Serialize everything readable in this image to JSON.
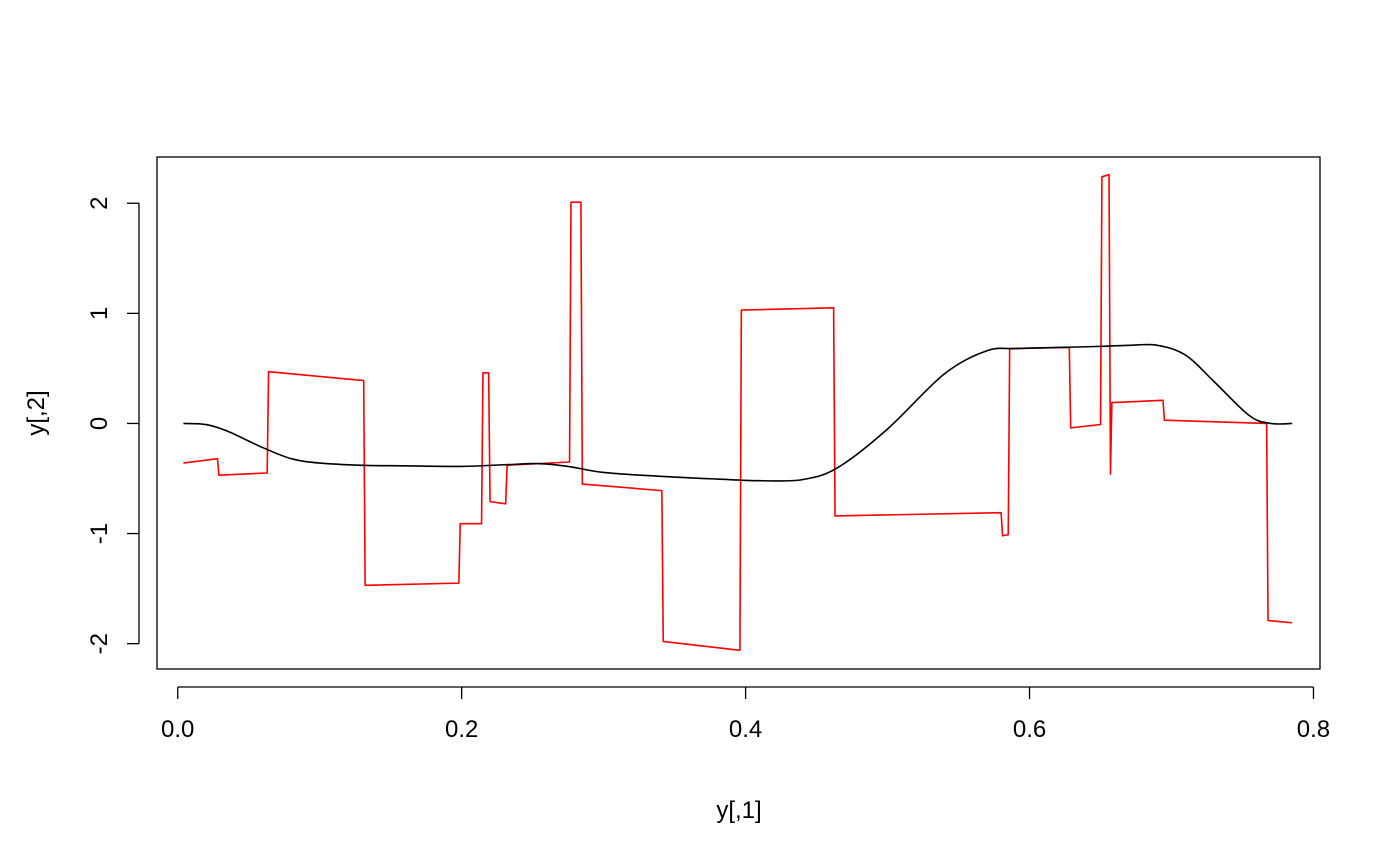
{
  "chart_data": {
    "type": "line",
    "title": "",
    "xlabel": "y[,1]",
    "ylabel": "y[,2]",
    "xlim": [
      -0.0146,
      0.8046
    ],
    "ylim": [
      -2.23,
      2.42
    ],
    "x_ticks": [
      0.0,
      0.2,
      0.4,
      0.6,
      0.8
    ],
    "x_tick_labels": [
      "0.0",
      "0.2",
      "0.4",
      "0.6",
      "0.8"
    ],
    "y_ticks": [
      -2,
      -1,
      0,
      1,
      2
    ],
    "y_tick_labels": [
      "-2",
      "-1",
      "0",
      "1",
      "2"
    ],
    "grid": false,
    "legend": "none",
    "series": [
      {
        "color": "#ff0000",
        "x": [
          0.004,
          0.028,
          0.029,
          0.063,
          0.064,
          0.131,
          0.132,
          0.198,
          0.199,
          0.214,
          0.215,
          0.219,
          0.22,
          0.231,
          0.232,
          0.276,
          0.277,
          0.284,
          0.285,
          0.341,
          0.342,
          0.396,
          0.397,
          0.462,
          0.463,
          0.58,
          0.581,
          0.585,
          0.586,
          0.628,
          0.629,
          0.65,
          0.651,
          0.656,
          0.657,
          0.658,
          0.659,
          0.694,
          0.695,
          0.767,
          0.768,
          0.785
        ],
        "y": [
          -0.36,
          -0.32,
          -0.47,
          -0.45,
          0.47,
          0.39,
          -1.47,
          -1.45,
          -0.91,
          -0.91,
          0.46,
          0.46,
          -0.71,
          -0.73,
          -0.38,
          -0.35,
          2.01,
          2.01,
          -0.55,
          -0.61,
          -1.98,
          -2.06,
          1.03,
          1.05,
          -0.84,
          -0.81,
          -1.02,
          -1.01,
          0.68,
          0.69,
          -0.04,
          -0.01,
          2.24,
          2.26,
          -0.46,
          0.19,
          0.19,
          0.21,
          0.03,
          0.0,
          -1.79,
          -1.81
        ]
      },
      {
        "color": "#000000",
        "smooth": true,
        "x": [
          0.004,
          0.02,
          0.035,
          0.06,
          0.08,
          0.1,
          0.13,
          0.16,
          0.2,
          0.23,
          0.255,
          0.275,
          0.3,
          0.34,
          0.38,
          0.41,
          0.44,
          0.465,
          0.5,
          0.54,
          0.57,
          0.59,
          0.62,
          0.65,
          0.67,
          0.69,
          0.71,
          0.73,
          0.755,
          0.77,
          0.785
        ],
        "y": [
          0.0,
          -0.01,
          -0.07,
          -0.22,
          -0.32,
          -0.36,
          -0.38,
          -0.385,
          -0.39,
          -0.375,
          -0.365,
          -0.39,
          -0.445,
          -0.48,
          -0.505,
          -0.52,
          -0.51,
          -0.4,
          -0.05,
          0.45,
          0.66,
          0.68,
          0.69,
          0.7,
          0.71,
          0.71,
          0.62,
          0.38,
          0.07,
          0.0,
          0.0
        ]
      }
    ]
  }
}
